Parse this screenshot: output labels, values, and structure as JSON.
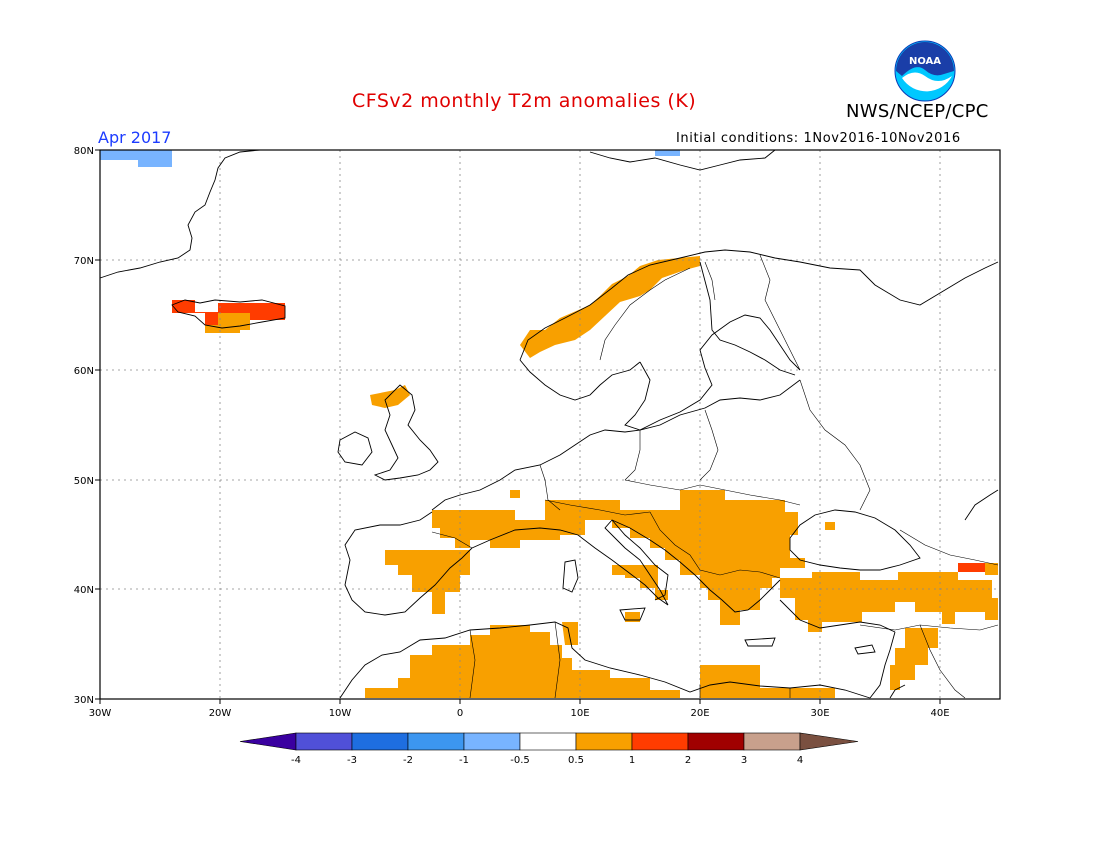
{
  "title": "CFSv2 monthly T2m anomalies (K)",
  "agency": "NWS/NCEP/CPC",
  "logo_text": "NOAA",
  "month_label": "Apr 2017",
  "initial_conditions": "Initial conditions: 1Nov2016-10Nov2016",
  "colors": {
    "title": "#e00000",
    "month_label": "#1d3cff",
    "anomaly_pos_0p5_1": "#f8a000",
    "anomaly_pos_1_2": "#ff3c00",
    "anomaly_pos_2_3": "#a00000",
    "anomaly_neg_0p5_1": "#78b4ff",
    "coast": "#000000",
    "grid": "#888888"
  },
  "map_axes": {
    "lat_labels": [
      "80N",
      "70N",
      "60N",
      "50N",
      "40N",
      "30N"
    ],
    "lon_labels": [
      "30W",
      "20W",
      "10W",
      "0",
      "10E",
      "20E",
      "30E",
      "40E"
    ]
  },
  "colorbar": {
    "colors": [
      "#3a00a0",
      "#5050d8",
      "#1e6ee0",
      "#3c96f0",
      "#78b4ff",
      "#ffffff",
      "#f8a000",
      "#ff3c00",
      "#a00000",
      "#c8a08c",
      "#7a5040"
    ],
    "labels": [
      "-4",
      "-3",
      "-2",
      "-1",
      "-0.5",
      "0.5",
      "1",
      "2",
      "3",
      "4"
    ]
  },
  "anomaly_regions": [
    {
      "name": "Greenland NW corner",
      "category": "-0.5 to -1",
      "lon": [
        -30,
        -24
      ],
      "lat": [
        79,
        80
      ]
    },
    {
      "name": "Iceland",
      "category": "1 to 2",
      "lon": [
        -24,
        -13
      ],
      "lat": [
        63.5,
        66.5
      ]
    },
    {
      "name": "Norway coast",
      "category": "0.5 to 1",
      "lon": [
        5,
        20
      ],
      "lat": [
        60,
        70
      ]
    },
    {
      "name": "Iberia",
      "category": "0.5 to 1",
      "lon": [
        -9,
        3
      ],
      "lat": [
        36,
        44
      ]
    },
    {
      "name": "France / Alps",
      "category": "0.5 to 1",
      "lon": [
        -2,
        13
      ],
      "lat": [
        43,
        48
      ]
    },
    {
      "name": "Balkans / Hungary",
      "category": "0.5 to 1",
      "lon": [
        13,
        28
      ],
      "lat": [
        37,
        48
      ]
    },
    {
      "name": "Turkey",
      "category": "0.5 to 1",
      "lon": [
        26,
        45
      ],
      "lat": [
        36,
        42
      ]
    },
    {
      "name": "Caucasus",
      "category": "1 to 2",
      "lon": [
        42,
        45
      ],
      "lat": [
        41.5,
        42.5
      ]
    },
    {
      "name": "North Africa",
      "category": "0.5 to 1",
      "lon": [
        -8,
        30
      ],
      "lat": [
        30,
        36
      ]
    },
    {
      "name": "Levant",
      "category": "0.5 to 1",
      "lon": [
        35,
        40
      ],
      "lat": [
        31,
        36
      ]
    }
  ]
}
